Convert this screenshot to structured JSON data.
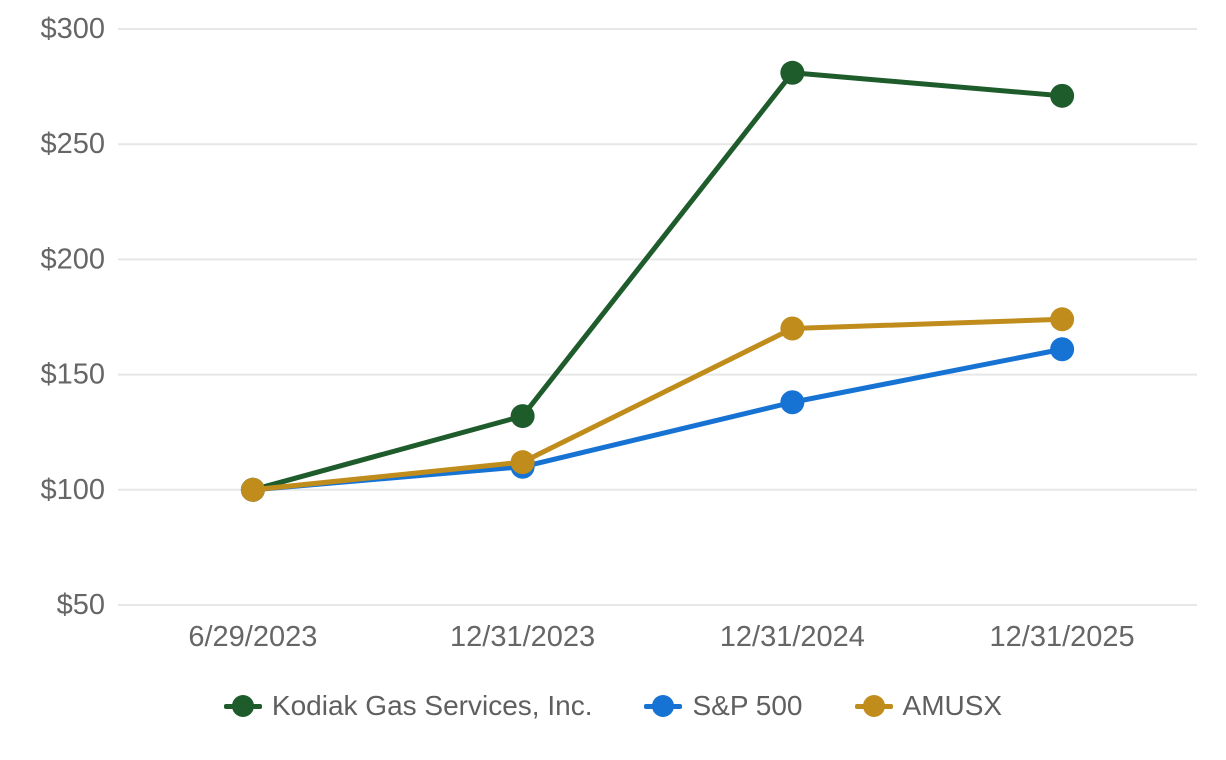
{
  "chart_data": {
    "type": "line",
    "title": "",
    "xlabel": "",
    "ylabel": "",
    "categories": [
      "6/29/2023",
      "12/31/2023",
      "12/31/2024",
      "12/31/2025"
    ],
    "y_ticks": [
      50,
      100,
      150,
      200,
      250,
      300
    ],
    "y_tick_labels": [
      "$50",
      "$100",
      "$150",
      "$200",
      "$250",
      "$300"
    ],
    "ylim": [
      50,
      300
    ],
    "grid": "horizontal-only",
    "gridline_color": "#e7e7e7",
    "axis_text_color": "#666666",
    "marker": "circle",
    "legend_position": "bottom",
    "series": [
      {
        "name": "Kodiak Gas Services, Inc.",
        "color": "#1e5c2c",
        "values": [
          100,
          132,
          281,
          271
        ]
      },
      {
        "name": "S&P 500",
        "color": "#1673d3",
        "values": [
          100,
          110,
          138,
          161
        ]
      },
      {
        "name": "AMUSX",
        "color": "#c08c1c",
        "values": [
          100,
          112,
          170,
          174
        ]
      }
    ]
  }
}
